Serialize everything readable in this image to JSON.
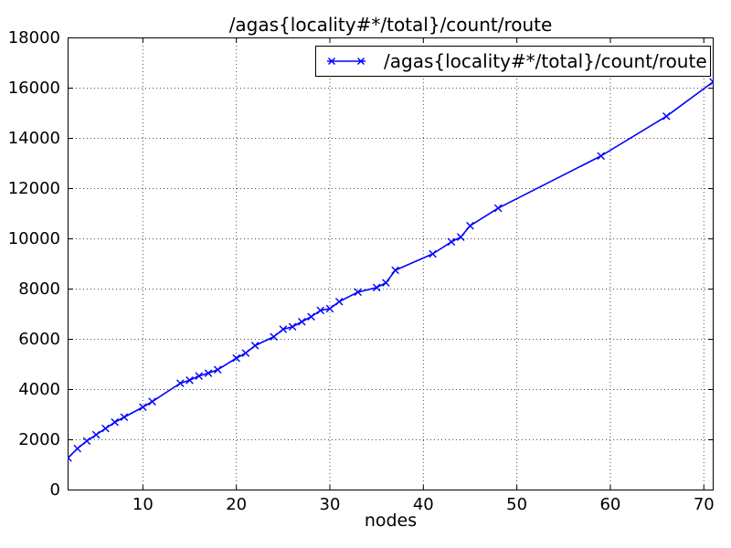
{
  "figure": {
    "title": "/agas{locality#*/total}/count/route",
    "xlabel": "nodes"
  },
  "legend": {
    "position": "upper right",
    "entries": [
      {
        "label": "/agas{locality#*/total}/count/route",
        "marker": "x",
        "color": "#0000ff"
      }
    ]
  },
  "colors": {
    "line": "#0000ff",
    "axis": "#000000",
    "grid": "#4d4d4d",
    "background": "#ffffff",
    "text": "#000000"
  },
  "chart_data": {
    "type": "line",
    "title": "/agas{locality#*/total}/count/route",
    "xlabel": "nodes",
    "ylabel": "",
    "xlim": [
      2,
      71
    ],
    "ylim": [
      0,
      18000
    ],
    "x_ticks": [
      10,
      20,
      30,
      40,
      50,
      60,
      70
    ],
    "y_ticks": [
      0,
      2000,
      4000,
      6000,
      8000,
      10000,
      12000,
      14000,
      16000,
      18000
    ],
    "grid": true,
    "grid_style": "dotted",
    "tick_direction": "in",
    "legend_position": "upper right",
    "series": [
      {
        "name": "/agas{locality#*/total}/count/route",
        "color": "#0000ff",
        "marker": "x",
        "x": [
          2,
          3,
          4,
          5,
          6,
          7,
          8,
          10,
          11,
          14,
          15,
          16,
          17,
          18,
          20,
          21,
          22,
          24,
          25,
          26,
          27,
          28,
          29,
          30,
          31,
          33,
          35,
          36,
          37,
          41,
          43,
          44,
          45,
          48,
          59,
          66,
          71
        ],
        "y": [
          1280,
          1650,
          1950,
          2200,
          2450,
          2700,
          2900,
          3300,
          3520,
          4250,
          4370,
          4540,
          4650,
          4790,
          5250,
          5450,
          5750,
          6100,
          6400,
          6500,
          6700,
          6900,
          7150,
          7220,
          7500,
          7880,
          8060,
          8250,
          8750,
          9400,
          9880,
          10070,
          10520,
          11220,
          13300,
          14880,
          16250
        ]
      }
    ]
  }
}
